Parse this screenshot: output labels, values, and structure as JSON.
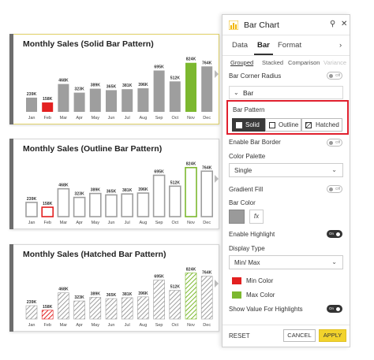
{
  "charts": [
    {
      "title": "Monthly Sales (Solid Bar Pattern)",
      "pattern": "solid",
      "selected": true
    },
    {
      "title": "Monthly Sales (Outline Bar Pattern)",
      "pattern": "outline",
      "selected": false
    },
    {
      "title": "Monthly Sales (Hatched Bar Pattern)",
      "pattern": "hatched",
      "selected": false
    }
  ],
  "chart_data": {
    "type": "bar",
    "categories": [
      "Jan",
      "Feb",
      "Mar",
      "Apr",
      "May",
      "Jun",
      "Jul",
      "Aug",
      "Sep",
      "Oct",
      "Nov",
      "Dec"
    ],
    "values": [
      239,
      158,
      468,
      323,
      389,
      365,
      381,
      396,
      695,
      512,
      824,
      764
    ],
    "data_labels": [
      "239K",
      "158K",
      "468K",
      "323K",
      "389K",
      "365K",
      "381K",
      "396K",
      "695K",
      "512K",
      "824K",
      "764K"
    ],
    "min_index": 1,
    "max_index": 10,
    "ylim": [
      0,
      900
    ],
    "colors": {
      "default": "#9e9e9e",
      "min": "#e32020",
      "max": "#7cb82f"
    }
  },
  "panel": {
    "title": "Bar Chart",
    "icons": [
      "search-icon",
      "close-icon"
    ],
    "tabs": [
      "Data",
      "Bar",
      "Format"
    ],
    "active_tab": "Bar",
    "subtabs": [
      "Grouped",
      "Stacked",
      "Comparison",
      "Variance"
    ],
    "bar_corner_radius": {
      "label": "Bar Corner Radius",
      "state": "Off"
    },
    "section": "Bar",
    "bar_pattern": {
      "label": "Bar Pattern",
      "options": [
        "Solid",
        "Outline",
        "Hatched"
      ],
      "selected": "Solid"
    },
    "enable_bar_border": {
      "label": "Enable Bar Border",
      "state": "Off"
    },
    "color_palette": {
      "label": "Color Palette",
      "value": "Single"
    },
    "gradient_fill": {
      "label": "Gradient Fill",
      "state": "Off"
    },
    "bar_color": {
      "label": "Bar Color",
      "color": "#9a9a9a",
      "fx": "fx"
    },
    "enable_highlight": {
      "label": "Enable Highlight",
      "state": "On"
    },
    "display_type": {
      "label": "Display Type",
      "value": "Min/ Max"
    },
    "min_color": {
      "label": "Min Color",
      "color": "#e32020"
    },
    "max_color": {
      "label": "Max Color",
      "color": "#7cb82f"
    },
    "show_value_highlights": {
      "label": "Show Value For Highlights",
      "state": "On"
    },
    "footer": {
      "reset": "RESET",
      "cancel": "CANCEL",
      "apply": "APPLY"
    }
  },
  "accent": {
    "red_box": "#e0202e",
    "apply": "#f2d32c"
  }
}
